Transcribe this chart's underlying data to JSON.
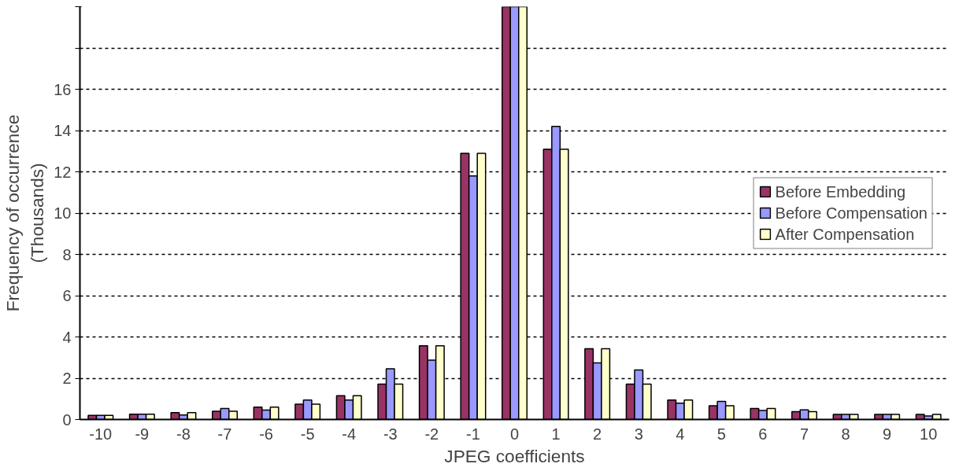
{
  "chart_data": {
    "type": "bar",
    "xlabel": "JPEG coefficients",
    "ylabel": "Frequency of occurrence\n(Thousands)",
    "categories": [
      "-10",
      "-9",
      "-8",
      "-7",
      "-6",
      "-5",
      "-4",
      "-3",
      "-2",
      "-1",
      "0",
      "1",
      "2",
      "3",
      "4",
      "5",
      "6",
      "7",
      "8",
      "9",
      "10"
    ],
    "series": [
      {
        "name": "Before Embedding",
        "color": "#993366",
        "values": [
          0.2,
          0.26,
          0.33,
          0.4,
          0.6,
          0.74,
          1.15,
          1.71,
          3.57,
          12.9,
          20,
          13.1,
          3.43,
          1.71,
          0.94,
          0.67,
          0.53,
          0.38,
          0.25,
          0.25,
          0.25
        ]
      },
      {
        "name": "Before Compensation",
        "color": "#9999ff",
        "values": [
          0.2,
          0.26,
          0.22,
          0.53,
          0.46,
          0.94,
          0.94,
          2.46,
          2.88,
          11.8,
          20,
          14.2,
          2.74,
          2.4,
          0.79,
          0.88,
          0.44,
          0.47,
          0.25,
          0.25,
          0.17
        ]
      },
      {
        "name": "After Compensation",
        "color": "#ffffcc",
        "values": [
          0.2,
          0.26,
          0.33,
          0.4,
          0.6,
          0.74,
          1.15,
          1.71,
          3.57,
          12.9,
          20,
          13.1,
          3.43,
          1.71,
          0.94,
          0.67,
          0.53,
          0.38,
          0.25,
          0.25,
          0.25
        ]
      }
    ],
    "ylim": [
      0,
      20
    ],
    "yticks": [
      0,
      2,
      4,
      6,
      8,
      10,
      12,
      14,
      16,
      {
        "value": 18,
        "label": null
      },
      {
        "value": 20,
        "label": null
      }
    ],
    "grid": "y",
    "legend": "right"
  }
}
